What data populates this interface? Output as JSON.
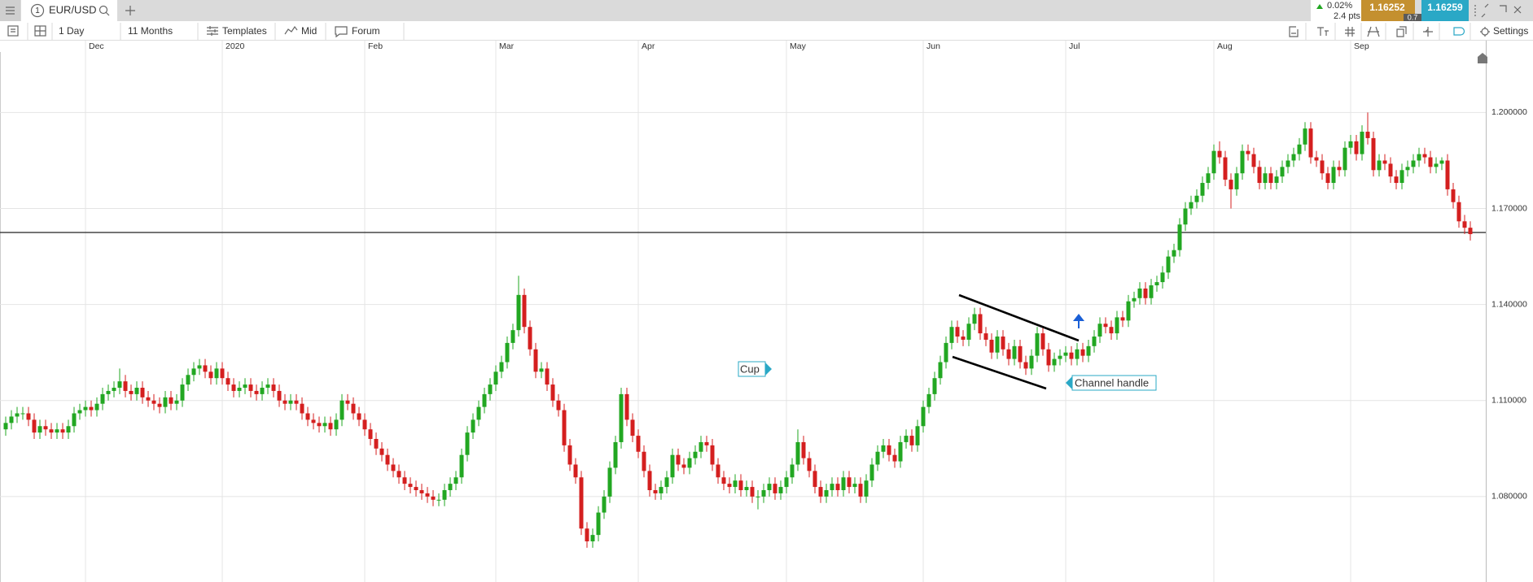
{
  "header": {
    "tab_number": 1,
    "symbol": "EUR/USD",
    "change": "0.02%",
    "change_points": "2.4 pts",
    "bid": 1.16252,
    "spread": 0.7,
    "ask": 1.16259
  },
  "toolbar": {
    "interval": "1 Day",
    "range": "11 Months",
    "templates": "Templates",
    "price_type": "Mid",
    "forum": "Forum",
    "settings": "Settings"
  },
  "chart_data": {
    "type": "candlestick",
    "up_color": "#22a722",
    "down_color": "#d41f1f",
    "grid": true,
    "ylim": [
      1.0533,
      1.2189
    ],
    "yticks": [
      {
        "value": 1.08,
        "label": "1.080000"
      },
      {
        "value": 1.11,
        "label": "1.110000"
      },
      {
        "value": 1.14,
        "label": "1.140000"
      },
      {
        "value": 1.17,
        "label": "1.170000"
      },
      {
        "value": 1.2,
        "label": "1.200000"
      }
    ],
    "xticks": [
      {
        "value": 14,
        "label": "Dec"
      },
      {
        "value": 38,
        "label": "2020"
      },
      {
        "value": 63,
        "label": "Feb"
      },
      {
        "value": 86,
        "label": "Mar"
      },
      {
        "value": 111,
        "label": "Apr"
      },
      {
        "value": 137,
        "label": "May"
      },
      {
        "value": 161,
        "label": "Jun"
      },
      {
        "value": 186,
        "label": "Jul"
      },
      {
        "value": 212,
        "label": "Aug"
      },
      {
        "value": 236,
        "label": "Sep"
      }
    ],
    "annotations": [
      "Cup",
      "Channel handle"
    ],
    "open": [
      1.101,
      1.103,
      1.105,
      1.106,
      1.106,
      1.104,
      1.1,
      1.102,
      1.101,
      1.1,
      1.101,
      1.1,
      1.102,
      1.106,
      1.107,
      1.108,
      1.107,
      1.109,
      1.112,
      1.113,
      1.114,
      1.116,
      1.113,
      1.112,
      1.114,
      1.111,
      1.11,
      1.109,
      1.108,
      1.111,
      1.109,
      1.11,
      1.115,
      1.118,
      1.12,
      1.121,
      1.119,
      1.117,
      1.12,
      1.117,
      1.115,
      1.113,
      1.114,
      1.115,
      1.113,
      1.112,
      1.114,
      1.115,
      1.113,
      1.11,
      1.109,
      1.11,
      1.109,
      1.106,
      1.104,
      1.103,
      1.102,
      1.103,
      1.101,
      1.104,
      1.11,
      1.109,
      1.106,
      1.104,
      1.101,
      1.098,
      1.095,
      1.093,
      1.09,
      1.088,
      1.086,
      1.084,
      1.083,
      1.082,
      1.081,
      1.08,
      1.079,
      1.079,
      1.082,
      1.084,
      1.086,
      1.093,
      1.1,
      1.104,
      1.108,
      1.112,
      1.115,
      1.119,
      1.122,
      1.128,
      1.132,
      1.143,
      1.133,
      1.126,
      1.119,
      1.12,
      1.115,
      1.11,
      1.107,
      1.096,
      1.09,
      1.086,
      1.07,
      1.066,
      1.068,
      1.075,
      1.08,
      1.089,
      1.097,
      1.112,
      1.104,
      1.099,
      1.094,
      1.088,
      1.082,
      1.081,
      1.083,
      1.086,
      1.093,
      1.09,
      1.089,
      1.092,
      1.094,
      1.097,
      1.096,
      1.09,
      1.086,
      1.084,
      1.083,
      1.085,
      1.082,
      1.083,
      1.08,
      1.08,
      1.082,
      1.084,
      1.081,
      1.083,
      1.086,
      1.09,
      1.097,
      1.092,
      1.088,
      1.083,
      1.08,
      1.082,
      1.084,
      1.082,
      1.086,
      1.083,
      1.084,
      1.08,
      1.085,
      1.09,
      1.094,
      1.096,
      1.093,
      1.091,
      1.097,
      1.099,
      1.096,
      1.102,
      1.108,
      1.112,
      1.117,
      1.122,
      1.128,
      1.133,
      1.13,
      1.129,
      1.134,
      1.137,
      1.131,
      1.129,
      1.125,
      1.13,
      1.126,
      1.123,
      1.127,
      1.122,
      1.12,
      1.124,
      1.131,
      1.126,
      1.121,
      1.123,
      1.124,
      1.125,
      1.123,
      1.126,
      1.124,
      1.127,
      1.13,
      1.134,
      1.133,
      1.131,
      1.136,
      1.135,
      1.141,
      1.142,
      1.145,
      1.142,
      1.146,
      1.147,
      1.15,
      1.155,
      1.157,
      1.165,
      1.17,
      1.172,
      1.174,
      1.178,
      1.181,
      1.188,
      1.186,
      1.179,
      1.176,
      1.181,
      1.188,
      1.187,
      1.183,
      1.178,
      1.181,
      1.178,
      1.18,
      1.183,
      1.185,
      1.187,
      1.19,
      1.195,
      1.186,
      1.185,
      1.181,
      1.178,
      1.183,
      1.182,
      1.189,
      1.191,
      1.187,
      1.194,
      1.192,
      1.182,
      1.185,
      1.184,
      1.18,
      1.178,
      1.182,
      1.183,
      1.185,
      1.187,
      1.186,
      1.183,
      1.184,
      1.185,
      1.176,
      1.172,
      1.166,
      1.164
    ],
    "high": [
      1.105,
      1.107,
      1.108,
      1.108,
      1.108,
      1.106,
      1.104,
      1.104,
      1.103,
      1.103,
      1.103,
      1.104,
      1.108,
      1.109,
      1.11,
      1.11,
      1.111,
      1.114,
      1.115,
      1.116,
      1.12,
      1.118,
      1.115,
      1.116,
      1.116,
      1.113,
      1.112,
      1.111,
      1.113,
      1.113,
      1.112,
      1.117,
      1.12,
      1.122,
      1.123,
      1.123,
      1.121,
      1.122,
      1.122,
      1.119,
      1.117,
      1.116,
      1.117,
      1.117,
      1.115,
      1.116,
      1.117,
      1.117,
      1.115,
      1.112,
      1.112,
      1.112,
      1.111,
      1.108,
      1.106,
      1.105,
      1.105,
      1.105,
      1.106,
      1.112,
      1.112,
      1.111,
      1.108,
      1.106,
      1.103,
      1.1,
      1.097,
      1.095,
      1.092,
      1.09,
      1.088,
      1.086,
      1.085,
      1.084,
      1.083,
      1.082,
      1.081,
      1.084,
      1.086,
      1.088,
      1.095,
      1.102,
      1.106,
      1.11,
      1.114,
      1.117,
      1.121,
      1.124,
      1.13,
      1.134,
      1.149,
      1.145,
      1.135,
      1.128,
      1.122,
      1.122,
      1.117,
      1.112,
      1.109,
      1.098,
      1.092,
      1.088,
      1.072,
      1.07,
      1.077,
      1.082,
      1.091,
      1.099,
      1.114,
      1.114,
      1.106,
      1.101,
      1.096,
      1.09,
      1.084,
      1.085,
      1.088,
      1.095,
      1.095,
      1.092,
      1.094,
      1.096,
      1.099,
      1.099,
      1.098,
      1.092,
      1.088,
      1.086,
      1.087,
      1.087,
      1.085,
      1.085,
      1.082,
      1.084,
      1.086,
      1.086,
      1.085,
      1.088,
      1.092,
      1.101,
      1.099,
      1.094,
      1.09,
      1.085,
      1.084,
      1.086,
      1.086,
      1.088,
      1.088,
      1.086,
      1.086,
      1.087,
      1.092,
      1.096,
      1.098,
      1.098,
      1.095,
      1.099,
      1.101,
      1.101,
      1.104,
      1.11,
      1.114,
      1.119,
      1.124,
      1.13,
      1.135,
      1.135,
      1.132,
      1.136,
      1.139,
      1.139,
      1.133,
      1.131,
      1.132,
      1.132,
      1.128,
      1.129,
      1.129,
      1.124,
      1.126,
      1.133,
      1.133,
      1.128,
      1.125,
      1.126,
      1.127,
      1.127,
      1.128,
      1.128,
      1.129,
      1.132,
      1.136,
      1.136,
      1.135,
      1.138,
      1.138,
      1.143,
      1.144,
      1.147,
      1.147,
      1.148,
      1.149,
      1.152,
      1.157,
      1.159,
      1.167,
      1.172,
      1.174,
      1.176,
      1.18,
      1.183,
      1.19,
      1.191,
      1.188,
      1.181,
      1.183,
      1.19,
      1.19,
      1.189,
      1.185,
      1.183,
      1.183,
      1.182,
      1.185,
      1.187,
      1.189,
      1.192,
      1.197,
      1.197,
      1.188,
      1.187,
      1.183,
      1.185,
      1.185,
      1.191,
      1.193,
      1.193,
      1.196,
      1.2,
      1.194,
      1.187,
      1.187,
      1.186,
      1.182,
      1.184,
      1.185,
      1.187,
      1.189,
      1.189,
      1.188,
      1.186,
      1.186,
      1.187,
      1.178,
      1.174,
      1.168,
      1.166
    ],
    "low": [
      1.099,
      1.101,
      1.103,
      1.104,
      1.102,
      1.098,
      1.098,
      1.099,
      1.098,
      1.098,
      1.098,
      1.098,
      1.1,
      1.104,
      1.105,
      1.105,
      1.105,
      1.107,
      1.11,
      1.111,
      1.112,
      1.111,
      1.11,
      1.11,
      1.109,
      1.108,
      1.107,
      1.106,
      1.106,
      1.107,
      1.107,
      1.108,
      1.113,
      1.116,
      1.118,
      1.117,
      1.115,
      1.115,
      1.115,
      1.113,
      1.111,
      1.111,
      1.112,
      1.111,
      1.11,
      1.11,
      1.112,
      1.111,
      1.108,
      1.107,
      1.107,
      1.107,
      1.104,
      1.102,
      1.101,
      1.1,
      1.1,
      1.099,
      1.099,
      1.102,
      1.107,
      1.104,
      1.102,
      1.099,
      1.096,
      1.093,
      1.091,
      1.088,
      1.086,
      1.084,
      1.082,
      1.081,
      1.08,
      1.079,
      1.078,
      1.077,
      1.077,
      1.077,
      1.08,
      1.082,
      1.084,
      1.091,
      1.098,
      1.102,
      1.106,
      1.11,
      1.113,
      1.117,
      1.12,
      1.126,
      1.13,
      1.131,
      1.124,
      1.117,
      1.117,
      1.113,
      1.108,
      1.105,
      1.094,
      1.088,
      1.084,
      1.068,
      1.064,
      1.064,
      1.066,
      1.073,
      1.078,
      1.087,
      1.095,
      1.102,
      1.097,
      1.092,
      1.086,
      1.08,
      1.079,
      1.079,
      1.081,
      1.084,
      1.088,
      1.087,
      1.087,
      1.09,
      1.092,
      1.094,
      1.088,
      1.084,
      1.082,
      1.081,
      1.081,
      1.08,
      1.08,
      1.078,
      1.076,
      1.078,
      1.08,
      1.079,
      1.079,
      1.081,
      1.084,
      1.088,
      1.09,
      1.086,
      1.081,
      1.078,
      1.078,
      1.08,
      1.08,
      1.08,
      1.081,
      1.081,
      1.078,
      1.078,
      1.083,
      1.088,
      1.092,
      1.091,
      1.089,
      1.089,
      1.095,
      1.094,
      1.094,
      1.1,
      1.106,
      1.11,
      1.115,
      1.12,
      1.126,
      1.128,
      1.127,
      1.127,
      1.132,
      1.129,
      1.127,
      1.123,
      1.123,
      1.124,
      1.121,
      1.121,
      1.12,
      1.118,
      1.118,
      1.122,
      1.124,
      1.119,
      1.119,
      1.121,
      1.122,
      1.121,
      1.121,
      1.122,
      1.122,
      1.125,
      1.128,
      1.131,
      1.129,
      1.129,
      1.133,
      1.133,
      1.139,
      1.14,
      1.14,
      1.14,
      1.144,
      1.145,
      1.148,
      1.153,
      1.155,
      1.163,
      1.168,
      1.17,
      1.172,
      1.176,
      1.179,
      1.184,
      1.177,
      1.17,
      1.174,
      1.179,
      1.185,
      1.181,
      1.176,
      1.176,
      1.176,
      1.176,
      1.178,
      1.181,
      1.183,
      1.185,
      1.188,
      1.184,
      1.183,
      1.179,
      1.176,
      1.176,
      1.18,
      1.18,
      1.187,
      1.185,
      1.185,
      1.19,
      1.18,
      1.18,
      1.182,
      1.178,
      1.176,
      1.176,
      1.18,
      1.181,
      1.183,
      1.184,
      1.181,
      1.181,
      1.182,
      1.174,
      1.17,
      1.164,
      1.162,
      1.16
    ],
    "close": [
      1.103,
      1.105,
      1.106,
      1.106,
      1.104,
      1.1,
      1.102,
      1.101,
      1.1,
      1.101,
      1.1,
      1.102,
      1.106,
      1.107,
      1.108,
      1.107,
      1.109,
      1.112,
      1.113,
      1.114,
      1.116,
      1.113,
      1.112,
      1.114,
      1.111,
      1.11,
      1.109,
      1.108,
      1.111,
      1.109,
      1.11,
      1.115,
      1.118,
      1.12,
      1.121,
      1.119,
      1.117,
      1.12,
      1.117,
      1.115,
      1.113,
      1.114,
      1.115,
      1.113,
      1.112,
      1.114,
      1.115,
      1.113,
      1.11,
      1.109,
      1.11,
      1.109,
      1.106,
      1.104,
      1.103,
      1.102,
      1.103,
      1.101,
      1.104,
      1.11,
      1.109,
      1.106,
      1.104,
      1.101,
      1.098,
      1.095,
      1.093,
      1.09,
      1.088,
      1.086,
      1.084,
      1.083,
      1.082,
      1.081,
      1.08,
      1.079,
      1.079,
      1.082,
      1.084,
      1.086,
      1.093,
      1.1,
      1.104,
      1.108,
      1.112,
      1.115,
      1.119,
      1.122,
      1.128,
      1.132,
      1.143,
      1.133,
      1.126,
      1.119,
      1.12,
      1.115,
      1.11,
      1.107,
      1.096,
      1.09,
      1.086,
      1.07,
      1.066,
      1.068,
      1.075,
      1.08,
      1.089,
      1.097,
      1.112,
      1.104,
      1.099,
      1.094,
      1.088,
      1.082,
      1.081,
      1.083,
      1.086,
      1.093,
      1.09,
      1.089,
      1.092,
      1.094,
      1.097,
      1.096,
      1.09,
      1.086,
      1.084,
      1.083,
      1.085,
      1.082,
      1.083,
      1.08,
      1.08,
      1.082,
      1.084,
      1.081,
      1.083,
      1.086,
      1.09,
      1.097,
      1.092,
      1.088,
      1.083,
      1.08,
      1.082,
      1.084,
      1.082,
      1.086,
      1.083,
      1.084,
      1.08,
      1.085,
      1.09,
      1.094,
      1.096,
      1.093,
      1.091,
      1.097,
      1.099,
      1.096,
      1.102,
      1.108,
      1.112,
      1.117,
      1.122,
      1.128,
      1.133,
      1.13,
      1.129,
      1.134,
      1.137,
      1.131,
      1.129,
      1.125,
      1.13,
      1.126,
      1.123,
      1.127,
      1.122,
      1.12,
      1.124,
      1.131,
      1.126,
      1.121,
      1.123,
      1.124,
      1.125,
      1.123,
      1.126,
      1.124,
      1.127,
      1.13,
      1.134,
      1.133,
      1.131,
      1.136,
      1.135,
      1.141,
      1.142,
      1.145,
      1.142,
      1.146,
      1.147,
      1.15,
      1.155,
      1.157,
      1.165,
      1.17,
      1.172,
      1.174,
      1.178,
      1.181,
      1.188,
      1.186,
      1.179,
      1.176,
      1.181,
      1.188,
      1.187,
      1.183,
      1.178,
      1.181,
      1.178,
      1.18,
      1.183,
      1.185,
      1.187,
      1.19,
      1.195,
      1.186,
      1.185,
      1.181,
      1.178,
      1.183,
      1.182,
      1.189,
      1.191,
      1.187,
      1.194,
      1.192,
      1.182,
      1.185,
      1.184,
      1.18,
      1.178,
      1.182,
      1.183,
      1.185,
      1.187,
      1.186,
      1.183,
      1.184,
      1.185,
      1.176,
      1.172,
      1.166,
      1.164,
      1.162
    ]
  }
}
